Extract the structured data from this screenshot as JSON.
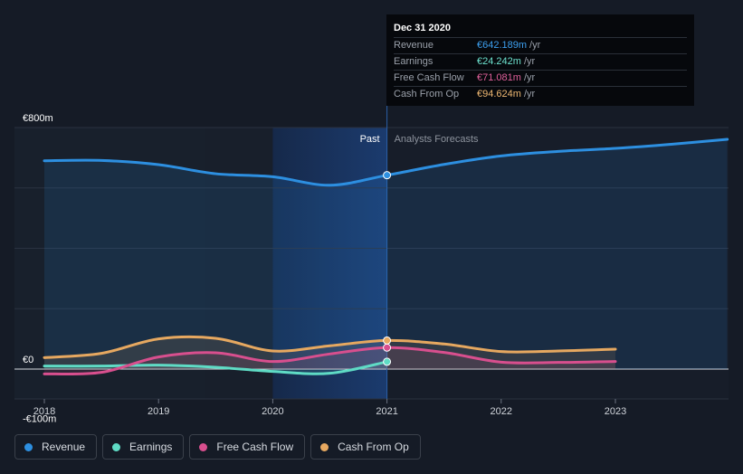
{
  "chart_data": {
    "type": "line",
    "x_labels": [
      "2018",
      "2019",
      "2020",
      "2021",
      "2022",
      "2023"
    ],
    "x_range": [
      2017.73,
      2023.98
    ],
    "ylim": [
      -100,
      800
    ],
    "y_ticks": [
      {
        "value": 800,
        "label": "€800m"
      },
      {
        "value": 0,
        "label": "€0"
      },
      {
        "value": -100,
        "label": "-€100m"
      }
    ],
    "gridlines": [
      800,
      600,
      400,
      200,
      0
    ],
    "divider_x": 2021.0,
    "shade_start": 2020.0,
    "past_label": "Past",
    "forecast_label": "Analysts Forecasts",
    "series": [
      {
        "name": "Revenue",
        "color": "#2d8fe0",
        "points": [
          [
            2018.0,
            690
          ],
          [
            2018.5,
            691
          ],
          [
            2019.0,
            677
          ],
          [
            2019.5,
            647
          ],
          [
            2020.0,
            637
          ],
          [
            2020.5,
            609
          ],
          [
            2021.0,
            642.189
          ],
          [
            2021.5,
            678
          ],
          [
            2022.0,
            706
          ],
          [
            2022.5,
            721
          ],
          [
            2023.0,
            731
          ],
          [
            2023.5,
            745
          ],
          [
            2023.98,
            761
          ]
        ]
      },
      {
        "name": "Earnings",
        "color": "#5fdbc5",
        "points": [
          [
            2018.0,
            10
          ],
          [
            2018.5,
            10
          ],
          [
            2019.0,
            13
          ],
          [
            2019.5,
            6
          ],
          [
            2020.0,
            -8
          ],
          [
            2020.5,
            -14
          ],
          [
            2021.0,
            24.242
          ]
        ]
      },
      {
        "name": "Free Cash Flow",
        "color": "#d84f8e",
        "points": [
          [
            2018.0,
            -16
          ],
          [
            2018.5,
            -11
          ],
          [
            2019.0,
            40
          ],
          [
            2019.5,
            54
          ],
          [
            2020.0,
            25
          ],
          [
            2020.5,
            50
          ],
          [
            2021.0,
            71.081
          ],
          [
            2021.5,
            55
          ],
          [
            2022.0,
            23
          ],
          [
            2022.5,
            22
          ],
          [
            2023.0,
            25
          ]
        ]
      },
      {
        "name": "Cash From Op",
        "color": "#e6a860",
        "points": [
          [
            2018.0,
            38
          ],
          [
            2018.5,
            52
          ],
          [
            2019.0,
            100
          ],
          [
            2019.5,
            102
          ],
          [
            2020.0,
            60
          ],
          [
            2020.5,
            77
          ],
          [
            2021.0,
            94.624
          ],
          [
            2021.5,
            83
          ],
          [
            2022.0,
            58
          ],
          [
            2022.5,
            60
          ],
          [
            2023.0,
            66
          ]
        ]
      }
    ]
  },
  "tooltip": {
    "date": "Dec 31 2020",
    "rows": [
      {
        "name": "Revenue",
        "value": "€642.189m",
        "unit": "/yr",
        "color": "#3da0f0"
      },
      {
        "name": "Earnings",
        "value": "€24.242m",
        "unit": "/yr",
        "color": "#6ee3cf"
      },
      {
        "name": "Free Cash Flow",
        "value": "€71.081m",
        "unit": "/yr",
        "color": "#e0609a"
      },
      {
        "name": "Cash From Op",
        "value": "€94.624m",
        "unit": "/yr",
        "color": "#efb872"
      }
    ]
  },
  "legend": [
    {
      "label": "Revenue",
      "color": "#2d8fe0"
    },
    {
      "label": "Earnings",
      "color": "#5fdbc5"
    },
    {
      "label": "Free Cash Flow",
      "color": "#d84f8e"
    },
    {
      "label": "Cash From Op",
      "color": "#e6a860"
    }
  ]
}
